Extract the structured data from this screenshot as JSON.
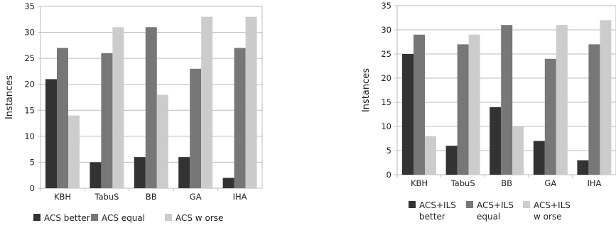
{
  "chart_data": [
    {
      "type": "bar",
      "title": "",
      "xlabel": "",
      "ylabel": "Instances",
      "ylim": [
        0,
        35
      ],
      "yticks": [
        0,
        5,
        10,
        15,
        20,
        25,
        30,
        35
      ],
      "grid": true,
      "categories": [
        "KBH",
        "TabuS",
        "BB",
        "GA",
        "IHA"
      ],
      "series": [
        {
          "name": "ACS better",
          "legend_lines": [
            "ACS better"
          ],
          "color": "#333333",
          "values": [
            21,
            5,
            6,
            6,
            2
          ]
        },
        {
          "name": "ACS equal",
          "legend_lines": [
            "ACS equal"
          ],
          "color": "#777777",
          "values": [
            27,
            26,
            31,
            23,
            27
          ]
        },
        {
          "name": "ACS worse",
          "legend_lines": [
            "ACS w orse"
          ],
          "color": "#cccccc",
          "values": [
            14,
            31,
            18,
            33,
            33
          ]
        }
      ],
      "legend_position": "bottom"
    },
    {
      "type": "bar",
      "title": "",
      "xlabel": "",
      "ylabel": "Instances",
      "ylim": [
        0,
        35
      ],
      "yticks": [
        0,
        5,
        10,
        15,
        20,
        25,
        30,
        35
      ],
      "grid": true,
      "categories": [
        "KBH",
        "TabuS",
        "BB",
        "GA",
        "IHA"
      ],
      "series": [
        {
          "name": "ACS+ILS better",
          "legend_lines": [
            "ACS+ILS",
            "better"
          ],
          "color": "#333333",
          "values": [
            25,
            6,
            14,
            7,
            3
          ]
        },
        {
          "name": "ACS+ILS equal",
          "legend_lines": [
            "ACS+ILS",
            "equal"
          ],
          "color": "#777777",
          "values": [
            29,
            27,
            31,
            24,
            27
          ]
        },
        {
          "name": "ACS+ILS worse",
          "legend_lines": [
            "ACS+ILS",
            "w orse"
          ],
          "color": "#cccccc",
          "values": [
            8,
            29,
            10,
            31,
            32
          ]
        }
      ],
      "legend_position": "bottom"
    }
  ]
}
